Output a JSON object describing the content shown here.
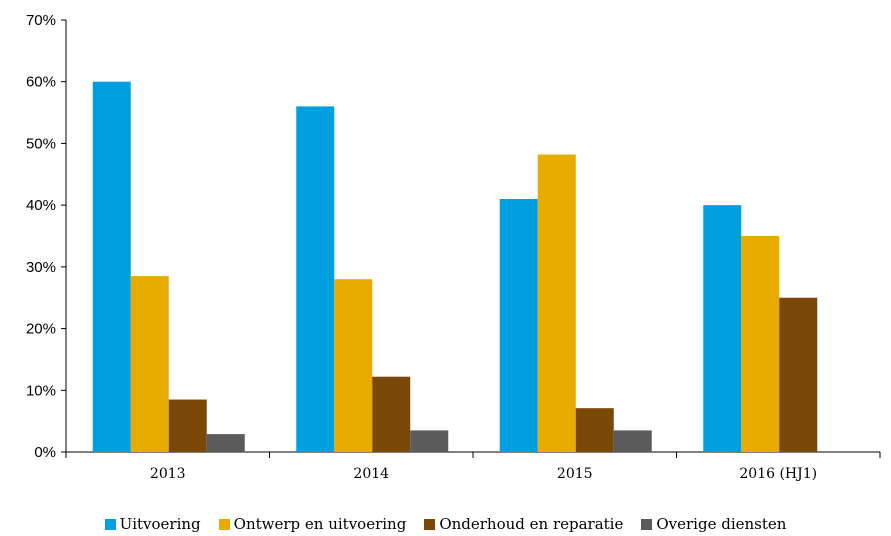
{
  "chart_data": {
    "type": "bar",
    "categories": [
      "2013",
      "2014",
      "2015",
      "2016 (HJ1)"
    ],
    "series": [
      {
        "name": "Uitvoering",
        "values": [
          60,
          56,
          41,
          40
        ],
        "color": "#009fdf"
      },
      {
        "name": "Ontwerp en uitvoering",
        "values": [
          28.5,
          28,
          48.2,
          35
        ],
        "color": "#e8ab00"
      },
      {
        "name": "Onderhoud en reparatie",
        "values": [
          8.5,
          12.2,
          7.1,
          25
        ],
        "color": "#7a4807"
      },
      {
        "name": "Overige diensten",
        "values": [
          2.9,
          3.5,
          3.5,
          0
        ],
        "color": "#5b5b5b"
      }
    ],
    "ylim": [
      0,
      70
    ],
    "yticks": [
      "0%",
      "10%",
      "20%",
      "30%",
      "40%",
      "50%",
      "60%",
      "70%"
    ],
    "grid": false,
    "legend_position": "bottom"
  }
}
